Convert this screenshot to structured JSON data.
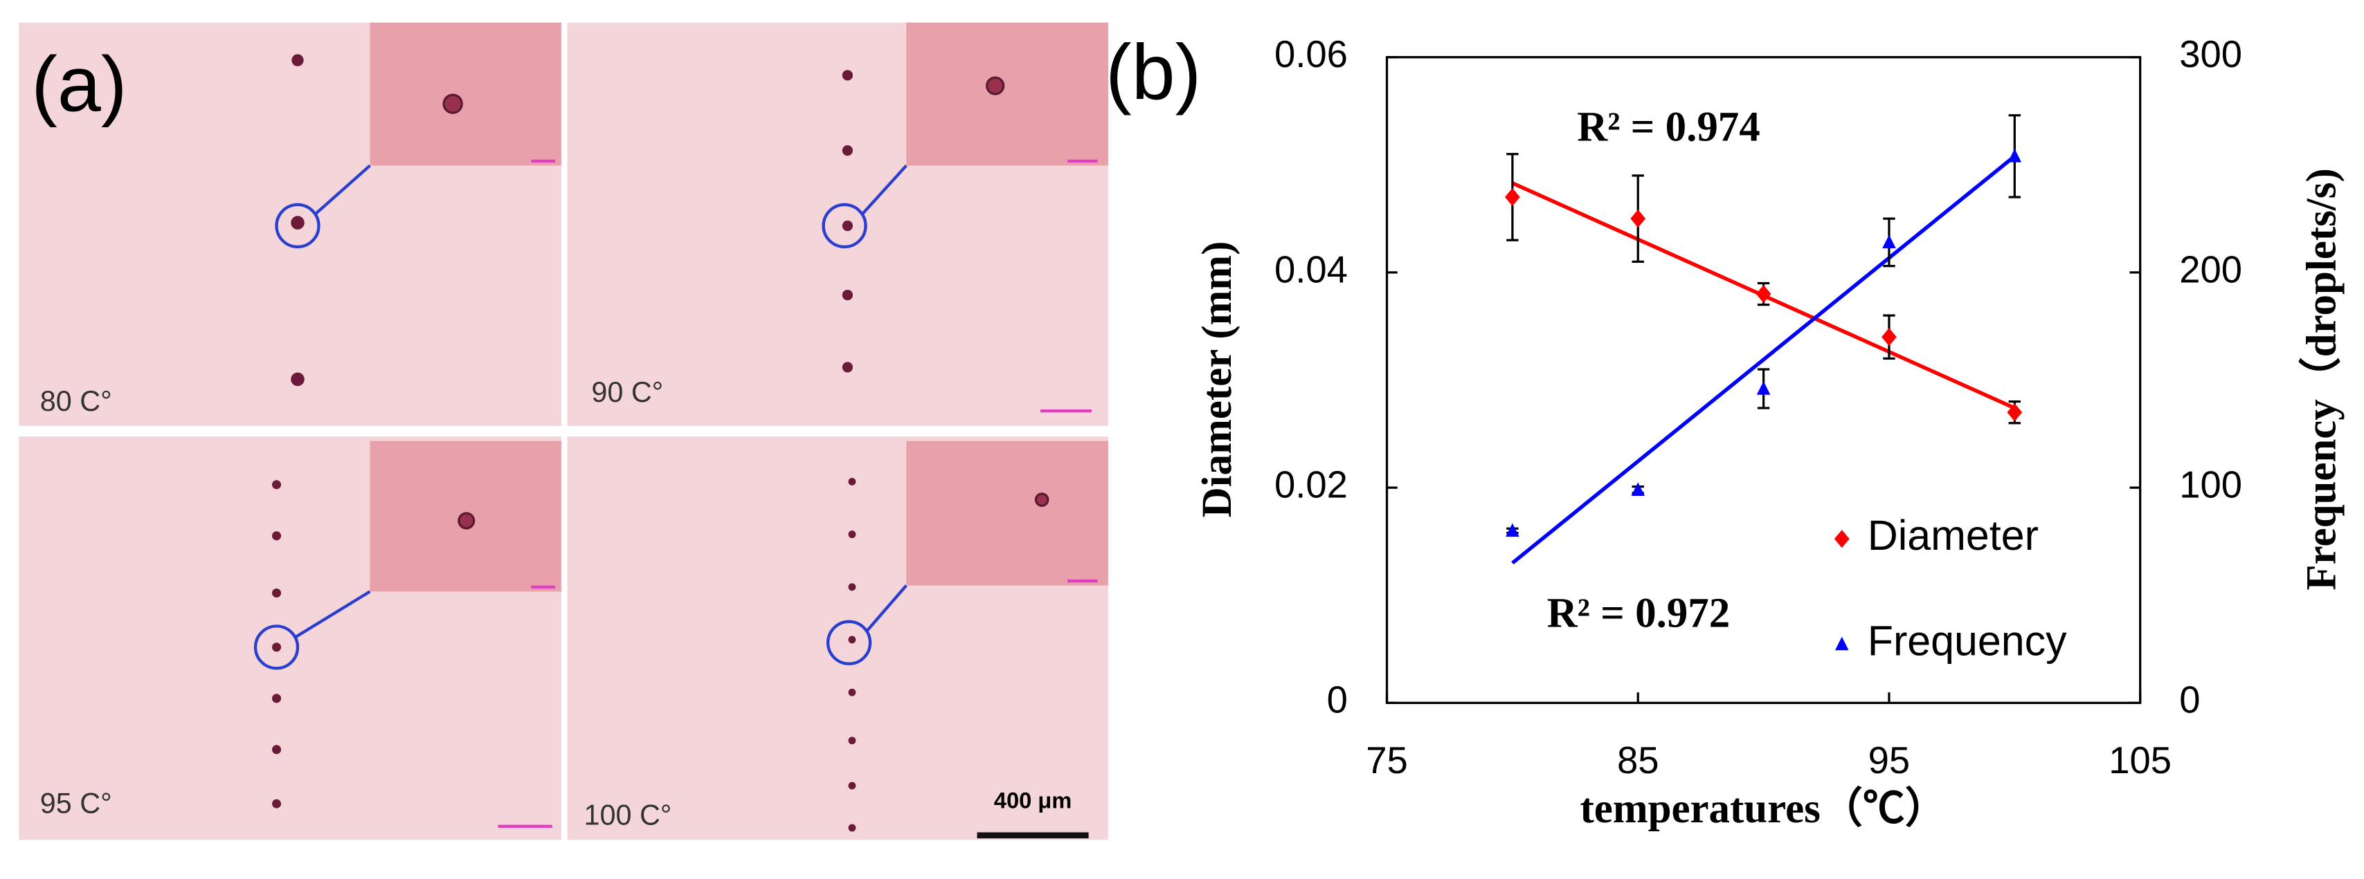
{
  "panel_a": {
    "label": "(a)",
    "images": [
      {
        "label": "80 C°"
      },
      {
        "label": "90 C°"
      },
      {
        "label": "95 C°"
      },
      {
        "label": "100 C°"
      }
    ],
    "scale_bar": "400 μm"
  },
  "chart_data": {
    "type": "scatter",
    "panel_label": "(b)",
    "x_label": "temperatures（℃）",
    "y_label": "Diameter (mm)",
    "y2_label": "Frequency（droplets/s)",
    "x": [
      80,
      85,
      90,
      95,
      100
    ],
    "series": [
      {
        "name": "Diameter",
        "color": "#ff0000",
        "marker": "diamond",
        "values": [
          0.047,
          0.045,
          0.038,
          0.034,
          0.027
        ],
        "errors": [
          0.004,
          0.004,
          0.001,
          0.002,
          0.001
        ]
      },
      {
        "name": "Frequency",
        "color": "#0000ff",
        "marker": "triangle",
        "axis": "y2",
        "values": [
          80,
          99,
          146,
          214,
          254
        ],
        "errors": [
          1,
          1.5,
          9,
          11,
          19
        ]
      }
    ],
    "trendlines": [
      {
        "color": "#ff0000",
        "x": [
          80,
          100
        ],
        "values": [
          0.0483,
          0.0274
        ]
      },
      {
        "color": "#0000ff",
        "axis": "y2",
        "x": [
          80,
          100
        ],
        "values": [
          65,
          254
        ]
      }
    ],
    "annotations": [
      "R² = 0.974",
      "R² = 0.972"
    ],
    "xlim": [
      75,
      105
    ],
    "xticks": [
      75,
      85,
      95,
      105
    ],
    "ylim": [
      0,
      0.06
    ],
    "yticks": [
      0,
      0.02,
      0.04,
      0.06
    ],
    "y2lim": [
      0,
      300
    ],
    "y2ticks": [
      0,
      100,
      200,
      300
    ],
    "legend": "lower right"
  }
}
